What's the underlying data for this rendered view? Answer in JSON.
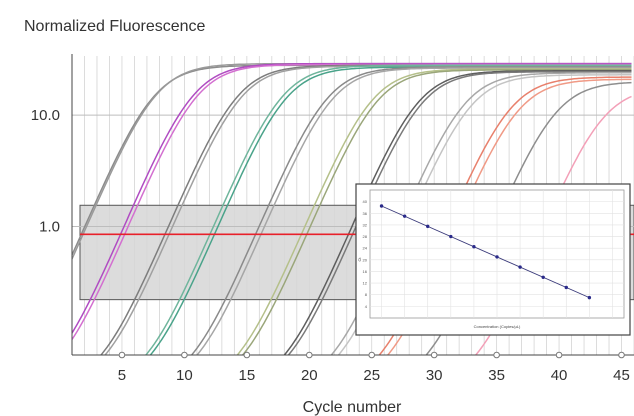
{
  "chart_data": [
    {
      "type": "line",
      "title": "",
      "ylabel": "Normalized Fluorescence",
      "xlabel": "Cycle number",
      "x_range": [
        1,
        46
      ],
      "y_scale": "log",
      "y_range": [
        0.07,
        34
      ],
      "x_ticks": [
        5,
        10,
        15,
        20,
        25,
        30,
        35,
        40,
        45
      ],
      "x_tick_labels": [
        "5",
        "10",
        "15",
        "20",
        "25",
        "30",
        "35",
        "40",
        "45"
      ],
      "y_ticks": [
        1.0,
        10.0
      ],
      "y_tick_labels": [
        "1.0",
        "10.0"
      ],
      "grid": true,
      "threshold": {
        "value": 0.85,
        "color": "#e8202a"
      },
      "threshold_band": {
        "low": 0.22,
        "high": 1.55,
        "color": "#d6d6d6"
      },
      "series": [
        {
          "midpoint": 7.4,
          "plateau": 28,
          "color": "#8c8c8c"
        },
        {
          "midpoint": 7.6,
          "plateau": 29,
          "color": "#9a9a9a"
        },
        {
          "midpoint": 10.6,
          "plateau": 29,
          "color": "#b04cc2"
        },
        {
          "midpoint": 10.9,
          "plateau": 28.5,
          "color": "#d36fd0"
        },
        {
          "midpoint": 14.1,
          "plateau": 28,
          "color": "#7d7d7d"
        },
        {
          "midpoint": 14.4,
          "plateau": 27.5,
          "color": "#a0a0a0"
        },
        {
          "midpoint": 17.7,
          "plateau": 28,
          "color": "#6fb59c"
        },
        {
          "midpoint": 18.0,
          "plateau": 27,
          "color": "#4aa38a"
        },
        {
          "midpoint": 21.3,
          "plateau": 27,
          "color": "#8a8a8a"
        },
        {
          "midpoint": 21.7,
          "plateau": 26.5,
          "color": "#a6a6a6"
        },
        {
          "midpoint": 24.9,
          "plateau": 26,
          "color": "#b5c08a"
        },
        {
          "midpoint": 25.3,
          "plateau": 25.5,
          "color": "#9aa67a"
        },
        {
          "midpoint": 28.6,
          "plateau": 25,
          "color": "#5e5e5e"
        },
        {
          "midpoint": 28.9,
          "plateau": 24.5,
          "color": "#7a7a7a"
        },
        {
          "midpoint": 32.3,
          "plateau": 24,
          "color": "#a8a8a8"
        },
        {
          "midpoint": 32.8,
          "plateau": 23,
          "color": "#c4c4c4"
        },
        {
          "midpoint": 36.0,
          "plateau": 22,
          "color": "#e8806c"
        },
        {
          "midpoint": 36.6,
          "plateau": 21,
          "color": "#f09a86"
        },
        {
          "midpoint": 39.6,
          "plateau": 20,
          "color": "#8e8e8e"
        },
        {
          "midpoint": 43.4,
          "plateau": 18,
          "color": "#f3a0b8"
        }
      ]
    },
    {
      "type": "scatter",
      "title": "",
      "xlabel": "Concentration (Copies/µL)",
      "ylabel": "Ct",
      "x": [
        1,
        2,
        3,
        4,
        5,
        6,
        7,
        8,
        9,
        10
      ],
      "y": [
        38.5,
        35.0,
        31.5,
        28.0,
        24.5,
        21.0,
        17.5,
        14.0,
        10.5,
        7.0
      ],
      "x_range": [
        0.5,
        11.5
      ],
      "y_range": [
        0,
        44
      ],
      "fit_line": true,
      "grid": true,
      "color": "#2a2a8a"
    }
  ]
}
